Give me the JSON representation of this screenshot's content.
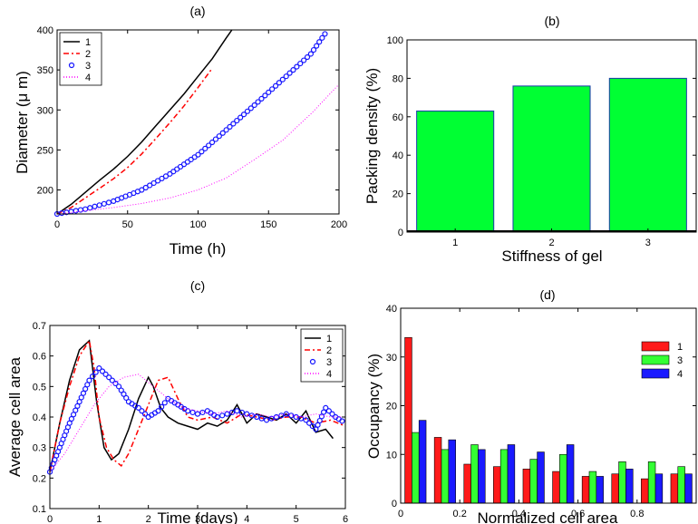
{
  "chart_data": [
    {
      "type": "line",
      "title": "(a)",
      "xlabel": "Time (h)",
      "ylabel": "Diameter (μ m)",
      "xlim": [
        0,
        200
      ],
      "ylim": [
        170,
        400
      ],
      "xticks": [
        0,
        50,
        100,
        150,
        200
      ],
      "yticks": [
        200,
        250,
        300,
        350,
        400
      ],
      "legend": "top-left",
      "series": [
        {
          "name": "1",
          "color": "#000000",
          "style": "solid",
          "x": [
            0,
            10,
            20,
            30,
            40,
            50,
            60,
            70,
            80,
            90,
            100,
            110,
            120,
            124
          ],
          "y": [
            170,
            182,
            197,
            212,
            226,
            242,
            260,
            280,
            300,
            320,
            342,
            364,
            390,
            400
          ]
        },
        {
          "name": "2",
          "color": "#ff0000",
          "style": "dashdot",
          "x": [
            0,
            10,
            20,
            30,
            40,
            50,
            60,
            70,
            80,
            90,
            100,
            110
          ],
          "y": [
            170,
            178,
            190,
            202,
            214,
            228,
            245,
            264,
            284,
            305,
            328,
            352
          ]
        },
        {
          "name": "3",
          "color": "#1515ff",
          "style": "circles",
          "x": [
            0,
            20,
            40,
            60,
            80,
            100,
            120,
            140,
            160,
            180,
            192
          ],
          "y": [
            170,
            176,
            186,
            200,
            220,
            244,
            275,
            306,
            338,
            370,
            400
          ]
        },
        {
          "name": "4",
          "color": "#ff00ff",
          "style": "dotted",
          "x": [
            0,
            20,
            40,
            60,
            80,
            100,
            120,
            140,
            160,
            180,
            200
          ],
          "y": [
            170,
            174,
            178,
            183,
            190,
            200,
            215,
            238,
            262,
            295,
            332
          ]
        }
      ]
    },
    {
      "type": "bar",
      "title": "(b)",
      "xlabel": "Stiffness of gel",
      "ylabel": "Packing density (%)",
      "categories": [
        "1",
        "2",
        "3"
      ],
      "values": [
        63,
        76,
        80
      ],
      "ylim": [
        0,
        100
      ],
      "yticks": [
        0,
        20,
        40,
        60,
        80,
        100
      ],
      "color": "#00ff33"
    },
    {
      "type": "line",
      "title": "(c)",
      "xlabel": "Time (days)",
      "ylabel": "Average cell area",
      "xlim": [
        0,
        6
      ],
      "ylim": [
        0.1,
        0.7
      ],
      "xticks": [
        0,
        1,
        2,
        3,
        4,
        5,
        6
      ],
      "yticks": [
        0.1,
        0.2,
        0.3,
        0.4,
        0.5,
        0.6,
        0.7
      ],
      "legend": "top-right",
      "series": [
        {
          "name": "1",
          "color": "#000000",
          "style": "solid",
          "x": [
            0,
            0.2,
            0.4,
            0.6,
            0.8,
            0.95,
            1.1,
            1.25,
            1.4,
            1.6,
            1.8,
            2.0,
            2.1,
            2.25,
            2.4,
            2.6,
            2.8,
            3.0,
            3.2,
            3.4,
            3.6,
            3.8,
            4.0,
            4.2,
            4.4,
            4.6,
            4.8,
            5.0,
            5.2,
            5.4,
            5.6,
            5.75
          ],
          "y": [
            0.22,
            0.38,
            0.52,
            0.62,
            0.65,
            0.45,
            0.3,
            0.26,
            0.28,
            0.36,
            0.46,
            0.53,
            0.5,
            0.43,
            0.4,
            0.38,
            0.37,
            0.36,
            0.38,
            0.37,
            0.39,
            0.44,
            0.38,
            0.41,
            0.4,
            0.39,
            0.41,
            0.38,
            0.42,
            0.35,
            0.36,
            0.33
          ]
        },
        {
          "name": "2",
          "color": "#ff0000",
          "style": "dashdot",
          "x": [
            0,
            0.2,
            0.4,
            0.6,
            0.8,
            0.9,
            1.0,
            1.15,
            1.3,
            1.45,
            1.6,
            1.8,
            2.0,
            2.2,
            2.4,
            2.6,
            2.8,
            3.0,
            3.3,
            3.6,
            3.9,
            4.2,
            4.5,
            4.8,
            5.1,
            5.4,
            5.7,
            6.0
          ],
          "y": [
            0.22,
            0.38,
            0.5,
            0.6,
            0.65,
            0.56,
            0.4,
            0.3,
            0.26,
            0.24,
            0.28,
            0.36,
            0.44,
            0.52,
            0.53,
            0.46,
            0.4,
            0.39,
            0.4,
            0.38,
            0.41,
            0.4,
            0.39,
            0.4,
            0.4,
            0.38,
            0.39,
            0.37
          ]
        },
        {
          "name": "3",
          "color": "#1515ff",
          "style": "circles",
          "x": [
            0,
            0.2,
            0.4,
            0.6,
            0.8,
            1.0,
            1.2,
            1.4,
            1.6,
            1.8,
            2.0,
            2.2,
            2.4,
            2.6,
            2.8,
            3.0,
            3.2,
            3.4,
            3.6,
            3.8,
            4.0,
            4.2,
            4.4,
            4.6,
            4.8,
            5.0,
            5.2,
            5.4,
            5.6,
            5.8,
            6.0
          ],
          "y": [
            0.22,
            0.3,
            0.38,
            0.45,
            0.52,
            0.56,
            0.53,
            0.5,
            0.45,
            0.43,
            0.4,
            0.42,
            0.46,
            0.44,
            0.42,
            0.41,
            0.42,
            0.4,
            0.41,
            0.42,
            0.41,
            0.4,
            0.39,
            0.4,
            0.41,
            0.4,
            0.39,
            0.36,
            0.43,
            0.4,
            0.38
          ]
        },
        {
          "name": "4",
          "color": "#ff00ff",
          "style": "dotted",
          "x": [
            0,
            0.3,
            0.6,
            0.9,
            1.2,
            1.5,
            1.8,
            2.1,
            2.4,
            2.7,
            3.0,
            3.3,
            3.6,
            3.9,
            4.2,
            4.5,
            4.8,
            5.1,
            5.4,
            5.7,
            6.0
          ],
          "y": [
            0.22,
            0.28,
            0.36,
            0.44,
            0.5,
            0.53,
            0.54,
            0.5,
            0.46,
            0.43,
            0.42,
            0.41,
            0.42,
            0.4,
            0.41,
            0.4,
            0.41,
            0.4,
            0.41,
            0.4,
            0.4
          ]
        }
      ]
    },
    {
      "type": "bar",
      "title": "(d)",
      "xlabel": "Normalized cell area",
      "ylabel": "Occupancy (%)",
      "xlim": [
        0,
        1
      ],
      "xticks": [
        0,
        0.2,
        0.4,
        0.6,
        0.8
      ],
      "ylim": [
        0,
        40
      ],
      "yticks": [
        0,
        10,
        20,
        30,
        40
      ],
      "legend": "top-right",
      "bin_centers": [
        0.05,
        0.15,
        0.25,
        0.35,
        0.45,
        0.55,
        0.65,
        0.75,
        0.85,
        0.95
      ],
      "series": [
        {
          "name": "1",
          "color": "#ff1a1a",
          "values": [
            34,
            13.5,
            8,
            7.5,
            7,
            6.5,
            5.5,
            6,
            5,
            6
          ]
        },
        {
          "name": "3",
          "color": "#33ff33",
          "values": [
            14.5,
            11,
            12,
            11,
            9,
            10,
            6.5,
            8.5,
            8.5,
            7.5
          ]
        },
        {
          "name": "4",
          "color": "#1a1aff",
          "values": [
            17,
            13,
            11,
            12,
            10.5,
            12,
            5.5,
            7,
            6,
            6
          ]
        }
      ]
    }
  ]
}
